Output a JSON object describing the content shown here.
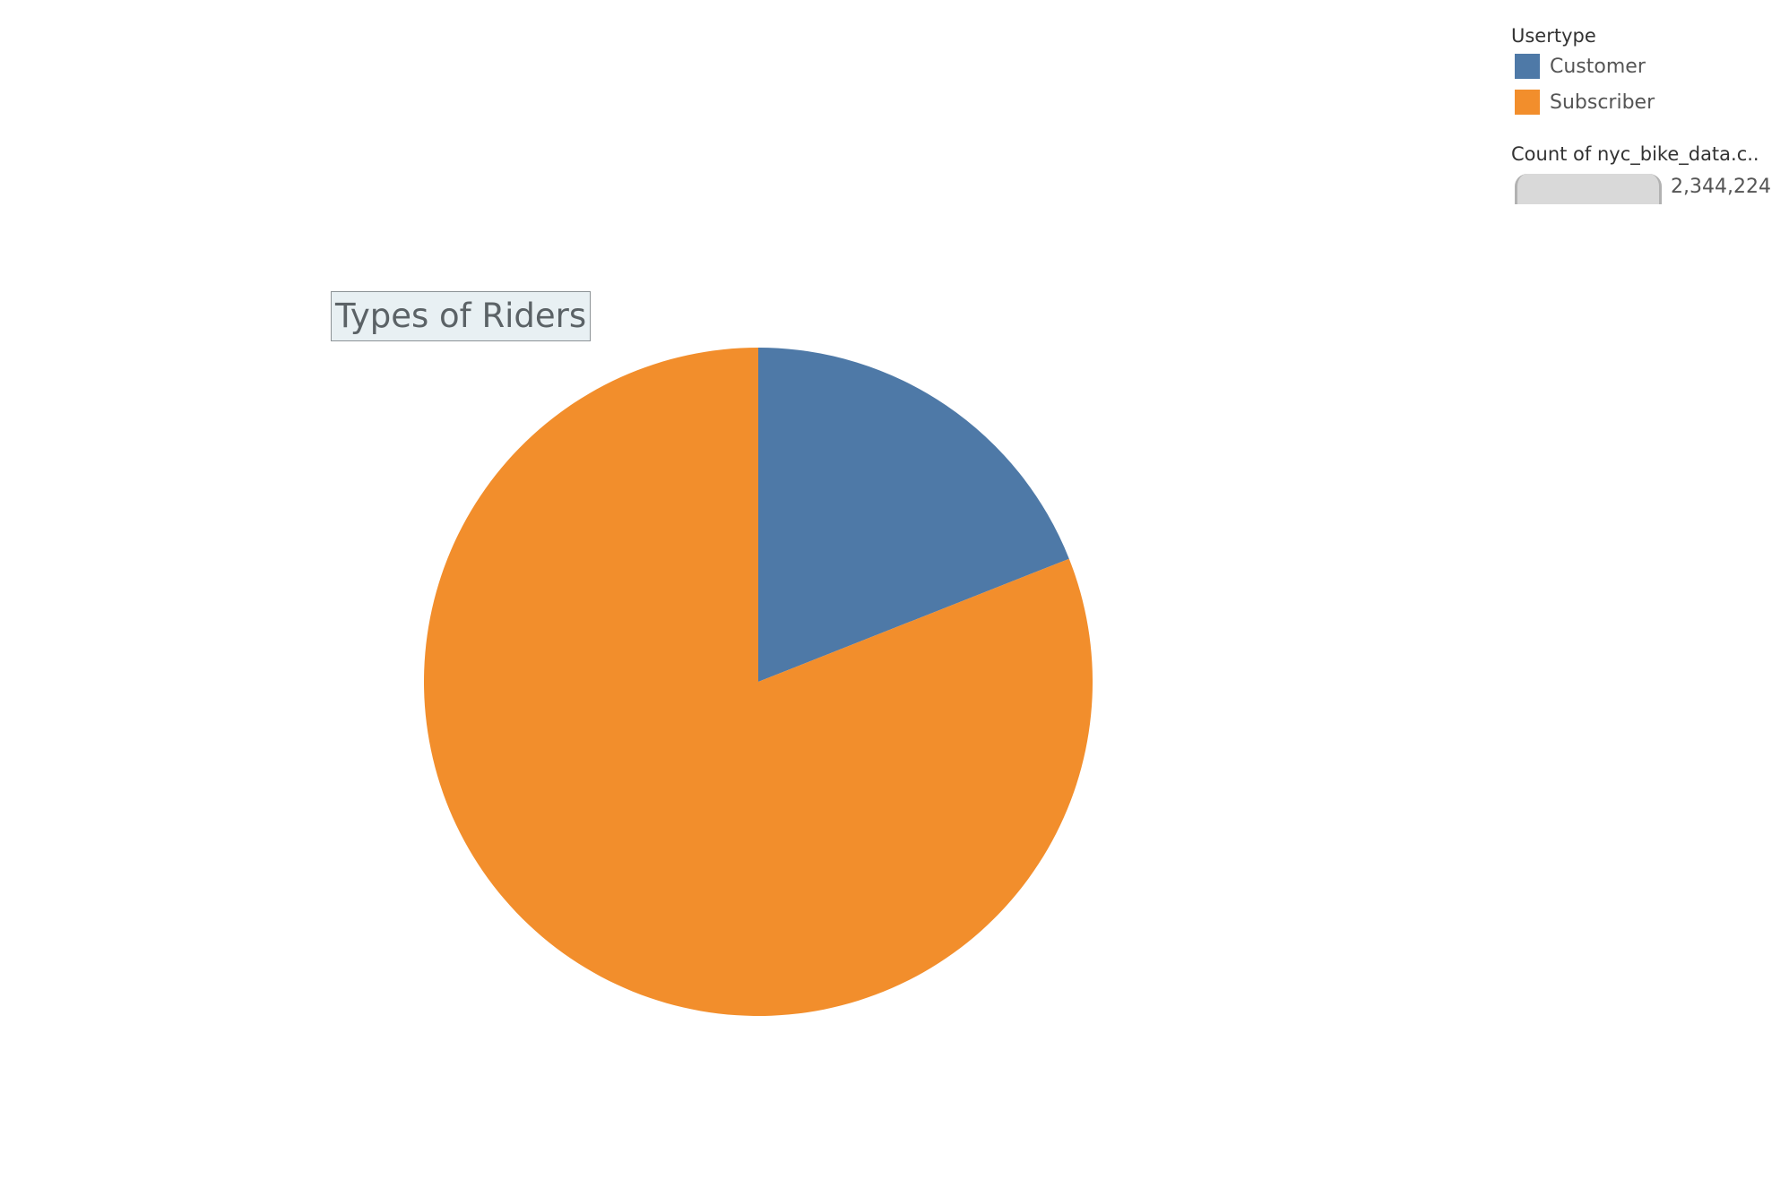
{
  "chart_data": {
    "type": "pie",
    "title": "Types of Riders",
    "categories": [
      "Customer",
      "Subscriber"
    ],
    "values": [
      0.19,
      0.81
    ],
    "colors": [
      "#4e79a7",
      "#f28e2c"
    ]
  },
  "legend": {
    "title": "Usertype",
    "items": [
      {
        "label": "Customer",
        "color": "#4e79a7"
      },
      {
        "label": "Subscriber",
        "color": "#f28e2c"
      }
    ]
  },
  "size_legend": {
    "title": "Count of nyc_bike_data.c..",
    "value": "2,344,224"
  }
}
